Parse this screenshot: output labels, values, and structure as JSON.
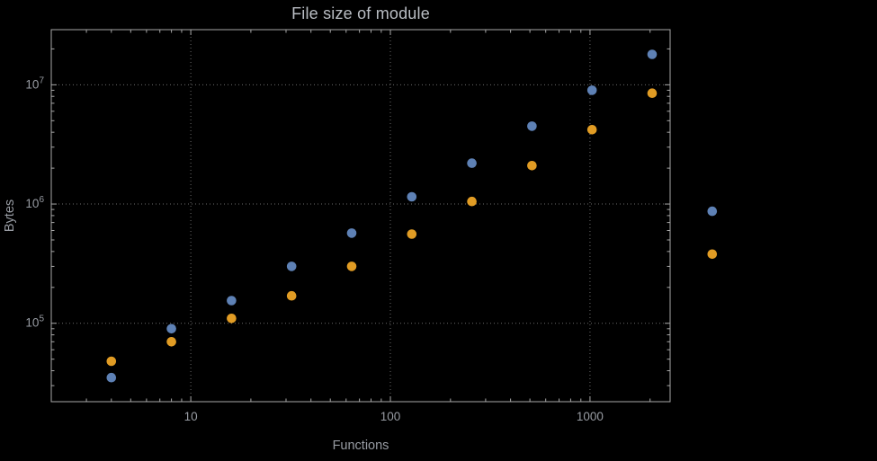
{
  "background": "#000000",
  "chart_data": {
    "type": "scatter",
    "title": "File size of module",
    "xlabel": "Functions",
    "ylabel": "Bytes",
    "x_scale": "log",
    "y_scale": "log",
    "xlim": [
      2,
      2520
    ],
    "ylim": [
      22000,
      29000000
    ],
    "x_ticks": [
      10,
      100,
      1000
    ],
    "x_tick_labels": [
      "10",
      "100",
      "1000"
    ],
    "y_ticks": [
      100000,
      1000000,
      10000000
    ],
    "y_tick_labels": [
      "10^5",
      "10^6",
      "10^7"
    ],
    "grid": "dotted",
    "legend": "none",
    "style": {
      "background": "#000000",
      "frame_color": "#a8a8a8",
      "grid_color": "#6b6b6b",
      "label_color": "#989ca3",
      "title_color": "#b9bdc3",
      "point_radius": 5.3
    },
    "series": [
      {
        "name": "series-blue",
        "color": "#5e81b5",
        "points": [
          [
            4,
            35000
          ],
          [
            8,
            90000
          ],
          [
            16,
            155000
          ],
          [
            32,
            300000
          ],
          [
            64,
            570000
          ],
          [
            128,
            1150000
          ],
          [
            256,
            2200000
          ],
          [
            512,
            4500000
          ],
          [
            1024,
            9000000
          ],
          [
            2048,
            18000000
          ],
          [
            4096,
            870000
          ]
        ]
      },
      {
        "name": "series-orange",
        "color": "#e19c24",
        "points": [
          [
            4,
            48000
          ],
          [
            8,
            70000
          ],
          [
            16,
            110000
          ],
          [
            32,
            170000
          ],
          [
            64,
            300000
          ],
          [
            128,
            560000
          ],
          [
            256,
            1050000
          ],
          [
            512,
            2100000
          ],
          [
            1024,
            4200000
          ],
          [
            2048,
            8500000
          ],
          [
            4096,
            380000
          ]
        ]
      }
    ]
  }
}
